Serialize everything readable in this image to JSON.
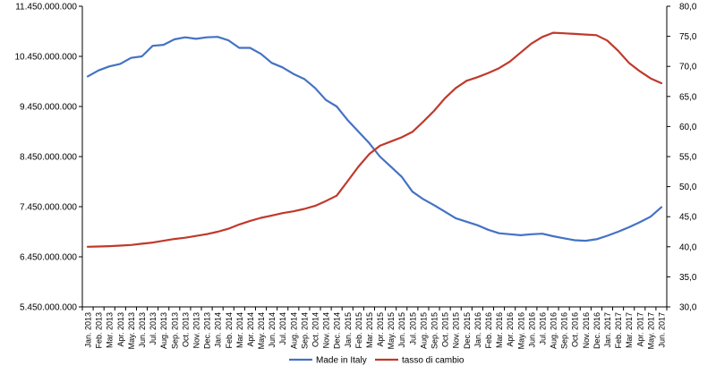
{
  "chart_data": {
    "type": "line",
    "title": "",
    "xlabel": "",
    "ylabel": "",
    "y2label": "",
    "grid": false,
    "legend_position": "bottom",
    "categories": [
      "Jan. 2013",
      "Feb. 2013",
      "Mar. 2013",
      "Apr. 2013",
      "May. 2013",
      "Jun. 2013",
      "Jul. 2013",
      "Aug. 2013",
      "Sep. 2013",
      "Oct. 2013",
      "Nov. 2013",
      "Dec. 2013",
      "Jan. 2014",
      "Feb. 2014",
      "Mar. 2014",
      "Apr. 2014",
      "May. 2014",
      "Jun. 2014",
      "Jul. 2014",
      "Aug. 2014",
      "Sep. 2014",
      "Oct. 2014",
      "Nov. 2014",
      "Dec. 2014",
      "Jan. 2015",
      "Feb. 2015",
      "Mar. 2015",
      "Apr. 2015",
      "May. 2015",
      "Jun. 2015",
      "Jul. 2015",
      "Aug. 2015",
      "Sep. 2015",
      "Oct. 2015",
      "Nov. 2015",
      "Dec. 2015",
      "Jan. 2016",
      "Feb. 2016",
      "Mar. 2016",
      "Apr. 2016",
      "May. 2016",
      "Jun. 2016",
      "Jul. 2016",
      "Aug. 2016",
      "Sep. 2016",
      "Oct. 2016",
      "Nov. 2016",
      "Dec. 2016",
      "Jan. 2017",
      "Feb. 2017",
      "Mar. 2017",
      "Apr. 2017",
      "May. 2017",
      "Jun. 2017"
    ],
    "y_left": {
      "min": 5450000000,
      "max": 11450000000,
      "ticks": [
        "5.450.000.000",
        "6.450.000.000",
        "7.450.000.000",
        "8.450.000.000",
        "9.450.000.000",
        "10.450.000.000",
        "11.450.000.000"
      ]
    },
    "y_right": {
      "min": 30,
      "max": 80,
      "ticks": [
        "30,0",
        "35,0",
        "40,0",
        "45,0",
        "50,0",
        "55,0",
        "60,0",
        "65,0",
        "70,0",
        "75,0",
        "80,0"
      ]
    },
    "series": [
      {
        "name": "Made in Italy",
        "axis": "left",
        "color": "#4472C4",
        "values": [
          10050000000,
          10170000000,
          10250000000,
          10300000000,
          10420000000,
          10450000000,
          10660000000,
          10680000000,
          10790000000,
          10830000000,
          10800000000,
          10830000000,
          10840000000,
          10770000000,
          10620000000,
          10620000000,
          10500000000,
          10320000000,
          10230000000,
          10100000000,
          10000000000,
          9820000000,
          9580000000,
          9450000000,
          9180000000,
          8950000000,
          8720000000,
          8450000000,
          8250000000,
          8050000000,
          7750000000,
          7600000000,
          7480000000,
          7350000000,
          7220000000,
          7150000000,
          7080000000,
          6990000000,
          6920000000,
          6900000000,
          6880000000,
          6900000000,
          6910000000,
          6860000000,
          6820000000,
          6780000000,
          6770000000,
          6800000000,
          6870000000,
          6950000000,
          7040000000,
          7140000000,
          7250000000,
          7440000000
        ]
      },
      {
        "name": "tasso di cambio",
        "axis": "right",
        "color": "#C0392B",
        "values": [
          40.0,
          40.05,
          40.1,
          40.2,
          40.3,
          40.5,
          40.7,
          41.0,
          41.3,
          41.5,
          41.8,
          42.1,
          42.5,
          43.0,
          43.7,
          44.3,
          44.8,
          45.2,
          45.6,
          45.9,
          46.3,
          46.8,
          47.6,
          48.5,
          50.9,
          53.3,
          55.4,
          56.8,
          57.5,
          58.2,
          59.1,
          60.8,
          62.6,
          64.7,
          66.4,
          67.6,
          68.2,
          68.9,
          69.7,
          70.8,
          72.3,
          73.8,
          74.9,
          75.6,
          75.5,
          75.4,
          75.3,
          75.2,
          74.3,
          72.6,
          70.6,
          69.2,
          68.0,
          67.2
        ]
      }
    ]
  }
}
